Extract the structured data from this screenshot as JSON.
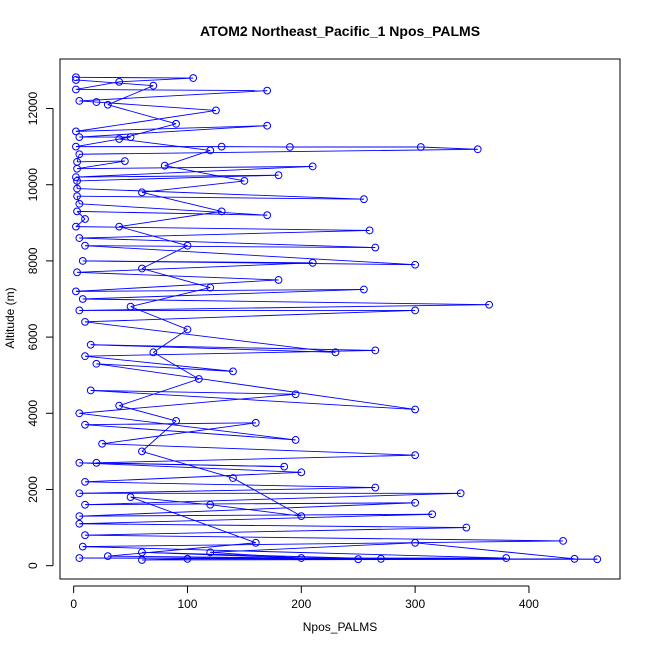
{
  "chart_data": {
    "type": "scatter",
    "title": "ATOM2 Northeast_Pacific_1 Npos_PALMS",
    "xlabel": "Npos_PALMS",
    "ylabel": "Altitude (m)",
    "xlim": [
      -12,
      480
    ],
    "ylim": [
      -350,
      13300
    ],
    "xticks": [
      0,
      100,
      200,
      300,
      400
    ],
    "yticks": [
      0,
      2000,
      4000,
      6000,
      8000,
      10000,
      12000
    ],
    "color": "#0000ff",
    "marker": "open-circle",
    "connect_points": true,
    "series": [
      {
        "values": [
          [
            2,
            12820
          ],
          [
            105,
            12800
          ],
          [
            40,
            12700
          ],
          [
            2,
            12500
          ],
          [
            170,
            12470
          ],
          [
            5,
            12200
          ],
          [
            20,
            12170
          ],
          [
            125,
            11950
          ],
          [
            2,
            11400
          ],
          [
            170,
            11550
          ],
          [
            5,
            11250
          ],
          [
            50,
            11250
          ],
          [
            2,
            11000
          ],
          [
            130,
            11000
          ],
          [
            190,
            10990
          ],
          [
            305,
            10990
          ],
          [
            355,
            10930
          ],
          [
            5,
            10800
          ],
          [
            3,
            10600
          ],
          [
            45,
            10620
          ],
          [
            3,
            10420
          ],
          [
            210,
            10480
          ],
          [
            2,
            10200
          ],
          [
            180,
            10250
          ],
          [
            3,
            10100
          ],
          [
            3,
            9900
          ],
          [
            255,
            9620
          ],
          [
            3,
            9700
          ],
          [
            5,
            9500
          ],
          [
            170,
            9200
          ],
          [
            3,
            9300
          ],
          [
            10,
            9100
          ],
          [
            2,
            8900
          ],
          [
            260,
            8800
          ],
          [
            5,
            8600
          ],
          [
            265,
            8350
          ],
          [
            10,
            8400
          ],
          [
            300,
            7900
          ],
          [
            8,
            8000
          ],
          [
            210,
            7950
          ],
          [
            3,
            7700
          ],
          [
            180,
            7500
          ],
          [
            2,
            7200
          ],
          [
            255,
            7250
          ],
          [
            8,
            7000
          ],
          [
            365,
            6850
          ],
          [
            5,
            6700
          ],
          [
            300,
            6700
          ],
          [
            10,
            6400
          ],
          [
            230,
            5600
          ],
          [
            15,
            5800
          ],
          [
            265,
            5650
          ],
          [
            10,
            5500
          ],
          [
            140,
            5100
          ],
          [
            20,
            5300
          ],
          [
            300,
            4100
          ],
          [
            15,
            4600
          ],
          [
            195,
            4500
          ],
          [
            5,
            4000
          ],
          [
            195,
            3300
          ],
          [
            10,
            3700
          ],
          [
            160,
            3750
          ],
          [
            25,
            3200
          ],
          [
            300,
            2900
          ],
          [
            20,
            2700
          ],
          [
            185,
            2600
          ],
          [
            5,
            2700
          ],
          [
            200,
            2450
          ],
          [
            10,
            2200
          ],
          [
            265,
            2050
          ],
          [
            5,
            1900
          ],
          [
            340,
            1900
          ],
          [
            10,
            1600
          ],
          [
            300,
            1650
          ],
          [
            5,
            1300
          ],
          [
            315,
            1350
          ],
          [
            5,
            1100
          ],
          [
            345,
            1000
          ],
          [
            10,
            800
          ],
          [
            430,
            650
          ],
          [
            8,
            500
          ],
          [
            380,
            200
          ],
          [
            5,
            200
          ],
          [
            460,
            170
          ],
          [
            60,
            150
          ],
          [
            100,
            180
          ],
          [
            250,
            170
          ],
          [
            440,
            180
          ],
          [
            300,
            600
          ],
          [
            120,
            350
          ],
          [
            200,
            200
          ],
          [
            60,
            350
          ],
          [
            270,
            180
          ],
          [
            30,
            250
          ],
          [
            160,
            600
          ],
          [
            50,
            1800
          ],
          [
            120,
            1600
          ],
          [
            200,
            1300
          ],
          [
            140,
            2300
          ],
          [
            60,
            3000
          ],
          [
            90,
            3800
          ],
          [
            40,
            4200
          ],
          [
            110,
            4900
          ],
          [
            70,
            5600
          ],
          [
            100,
            6200
          ],
          [
            50,
            6800
          ],
          [
            120,
            7300
          ],
          [
            60,
            7800
          ],
          [
            100,
            8400
          ],
          [
            40,
            8900
          ],
          [
            130,
            9300
          ],
          [
            60,
            9800
          ],
          [
            150,
            10100
          ],
          [
            80,
            10500
          ],
          [
            120,
            10900
          ],
          [
            40,
            11200
          ],
          [
            90,
            11600
          ],
          [
            30,
            12100
          ],
          [
            70,
            12600
          ],
          [
            2,
            12750
          ]
        ]
      }
    ]
  }
}
